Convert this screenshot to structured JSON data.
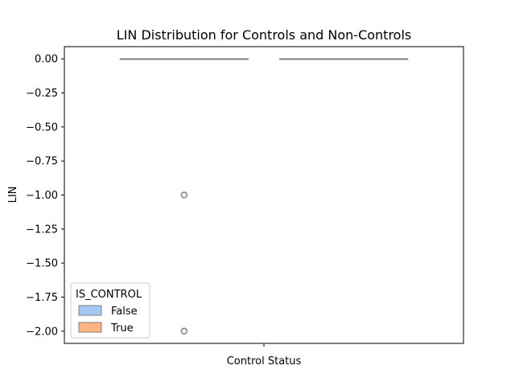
{
  "chart_data": {
    "type": "box",
    "title": "LIN Distribution for Controls and Non-Controls",
    "xlabel": "Control Status",
    "ylabel": "LIN",
    "ylim": [
      -2.09,
      0.09
    ],
    "yticks": [
      0.0,
      -0.25,
      -0.5,
      -0.75,
      -1.0,
      -1.25,
      -1.5,
      -1.75,
      -2.0
    ],
    "ytick_labels": [
      "0.00",
      "−0.25",
      "−0.50",
      "−0.75",
      "−1.00",
      "−1.25",
      "−1.50",
      "−1.75",
      "−2.00"
    ],
    "x_tick_labels": [
      ""
    ],
    "grid": false,
    "series": [
      {
        "name": "False",
        "color": "#a1c9f4",
        "q1": 0.0,
        "median": 0.0,
        "q3": 0.0,
        "whisker_low": 0.0,
        "whisker_high": 0.0,
        "outliers": [
          -1.0,
          -2.0
        ]
      },
      {
        "name": "True",
        "color": "#ffb482",
        "q1": 0.0,
        "median": 0.0,
        "q3": 0.0,
        "whisker_low": 0.0,
        "whisker_high": 0.0,
        "outliers": []
      }
    ],
    "legend": {
      "title": "IS_CONTROL",
      "placement": "lower-left",
      "entries": [
        "False",
        "True"
      ]
    }
  }
}
